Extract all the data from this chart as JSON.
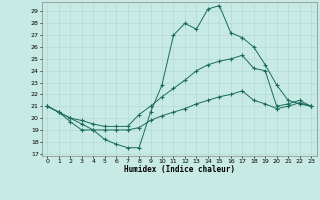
{
  "xlabel": "Humidex (Indice chaleur)",
  "x_ticks": [
    0,
    1,
    2,
    3,
    4,
    5,
    6,
    7,
    8,
    9,
    10,
    11,
    12,
    13,
    14,
    15,
    16,
    17,
    18,
    19,
    20,
    21,
    22,
    23
  ],
  "y_ticks": [
    17,
    18,
    19,
    20,
    21,
    22,
    23,
    24,
    25,
    26,
    27,
    28,
    29
  ],
  "xlim": [
    -0.5,
    23.5
  ],
  "ylim": [
    16.8,
    29.8
  ],
  "bg_color": "#c8eae4",
  "grid_color": "#b0d8d0",
  "line_color": "#1a6b5e",
  "series_max": [
    21.0,
    20.5,
    19.7,
    19.0,
    19.0,
    18.2,
    17.8,
    17.5,
    17.5,
    20.5,
    22.8,
    27.0,
    28.0,
    27.5,
    29.2,
    29.5,
    27.2,
    26.8,
    26.0,
    24.5,
    22.8,
    21.5,
    21.2,
    21.0
  ],
  "series_avg": [
    21.0,
    20.5,
    20.0,
    19.8,
    19.5,
    19.3,
    19.3,
    19.3,
    20.3,
    21.0,
    21.8,
    22.5,
    23.2,
    24.0,
    24.5,
    24.8,
    25.0,
    25.3,
    24.2,
    24.0,
    21.0,
    21.2,
    21.5,
    21.0
  ],
  "series_min": [
    21.0,
    20.5,
    20.0,
    19.5,
    19.0,
    19.0,
    19.0,
    19.0,
    19.2,
    19.8,
    20.2,
    20.5,
    20.8,
    21.2,
    21.5,
    21.8,
    22.0,
    22.3,
    21.5,
    21.2,
    20.8,
    21.0,
    21.3,
    21.0
  ]
}
